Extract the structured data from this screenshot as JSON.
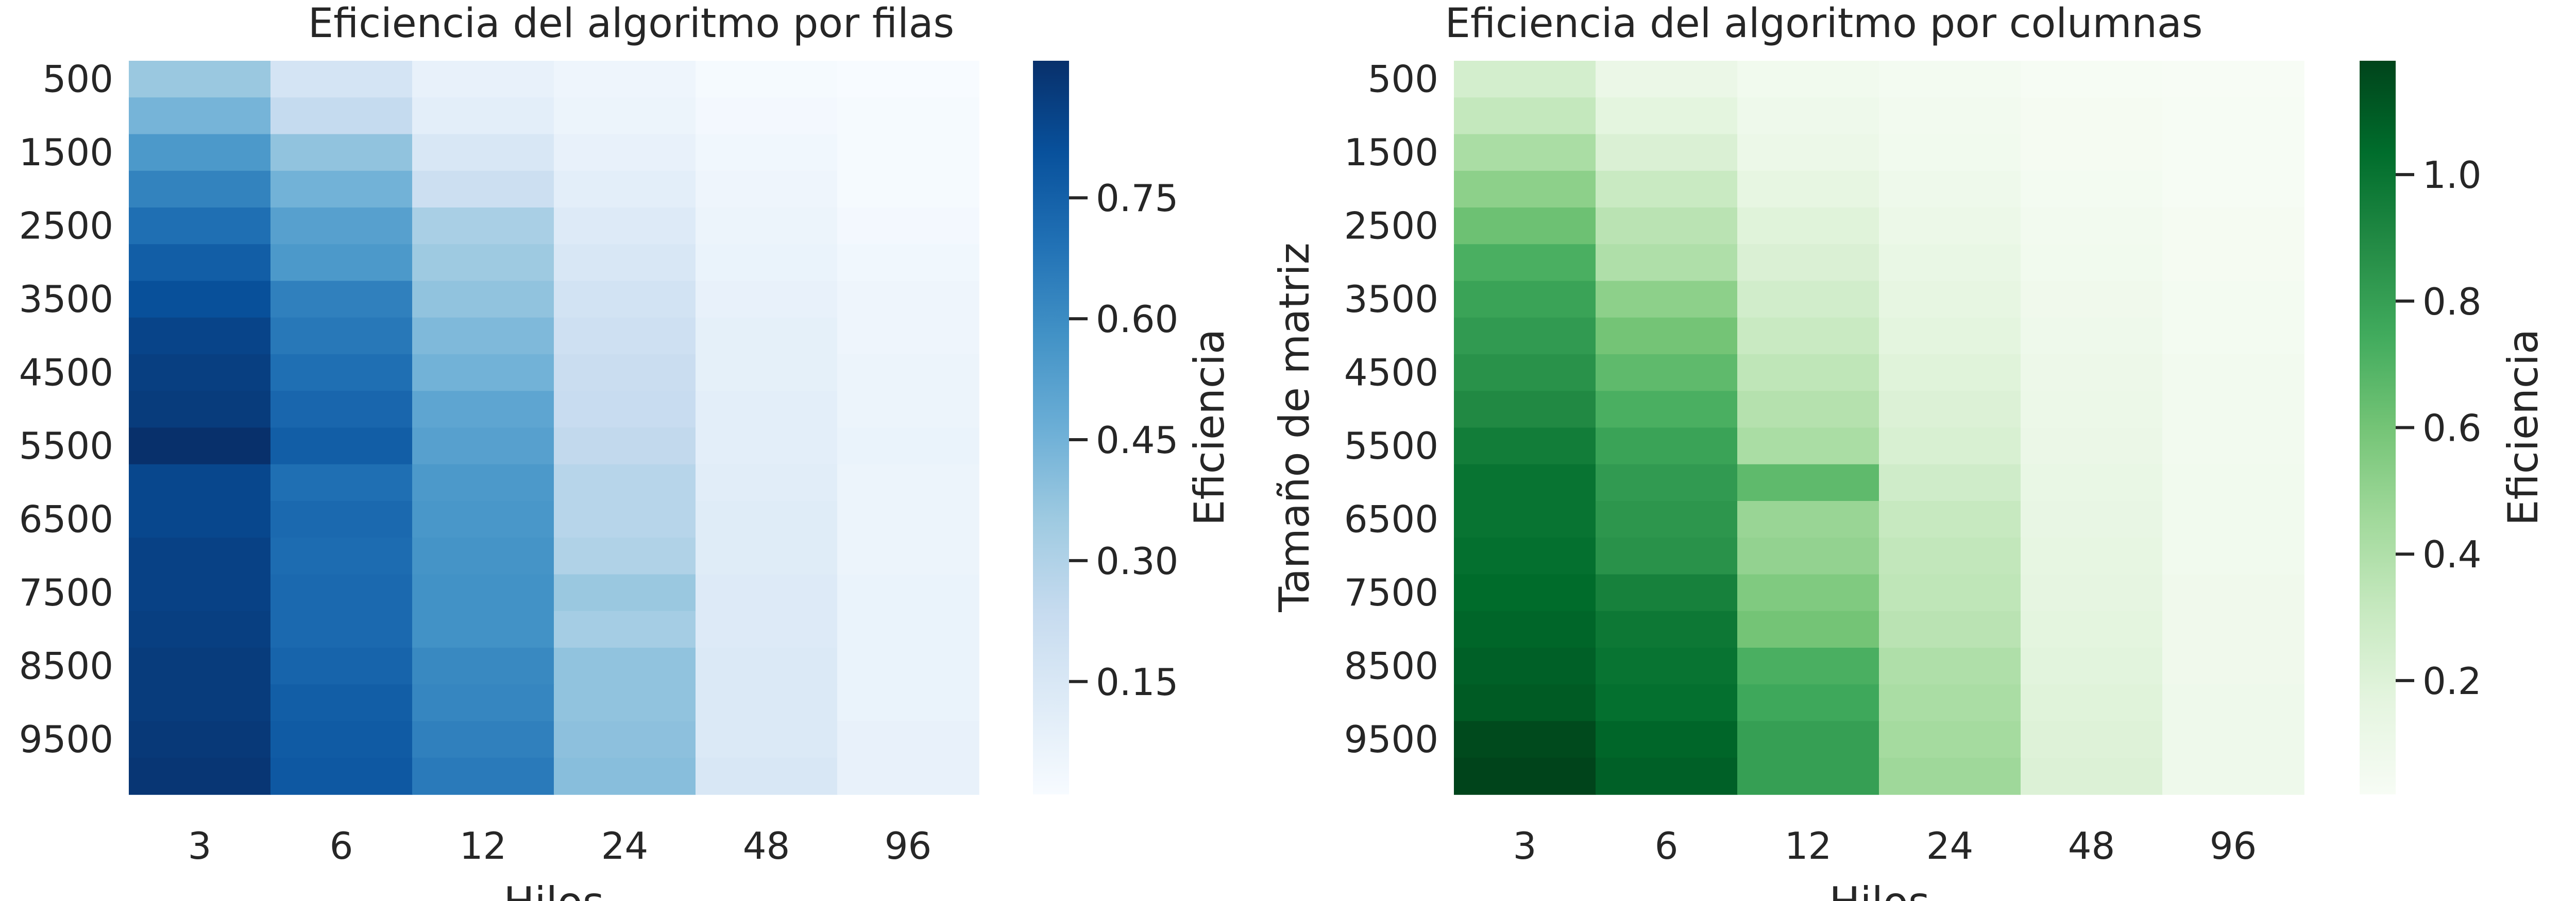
{
  "chart_data": [
    {
      "type": "heatmap",
      "title": "Eficiencia del algoritmo por filas",
      "xlabel": "Hilos",
      "ylabel": "",
      "x": [
        "3",
        "6",
        "12",
        "24",
        "48",
        "96"
      ],
      "y_tick_labels": [
        "500",
        "1500",
        "2500",
        "3500",
        "4500",
        "5500",
        "6500",
        "7500",
        "8500",
        "9500"
      ],
      "rows": [
        "500",
        "1000",
        "1500",
        "2000",
        "2500",
        "3000",
        "3500",
        "4000",
        "4500",
        "5000",
        "5500",
        "6000",
        "6500",
        "7000",
        "7500",
        "8000",
        "8500",
        "9000",
        "9500",
        "10000"
      ],
      "values": [
        [
          0.36,
          0.17,
          0.08,
          0.05,
          0.02,
          0.01
        ],
        [
          0.44,
          0.24,
          0.1,
          0.06,
          0.03,
          0.02
        ],
        [
          0.55,
          0.38,
          0.15,
          0.08,
          0.04,
          0.02
        ],
        [
          0.63,
          0.45,
          0.21,
          0.1,
          0.05,
          0.02
        ],
        [
          0.7,
          0.52,
          0.32,
          0.13,
          0.06,
          0.03
        ],
        [
          0.76,
          0.55,
          0.35,
          0.15,
          0.07,
          0.04
        ],
        [
          0.81,
          0.64,
          0.38,
          0.18,
          0.08,
          0.05
        ],
        [
          0.85,
          0.67,
          0.42,
          0.2,
          0.09,
          0.05
        ],
        [
          0.87,
          0.7,
          0.45,
          0.22,
          0.09,
          0.06
        ],
        [
          0.88,
          0.73,
          0.5,
          0.23,
          0.1,
          0.06
        ],
        [
          0.92,
          0.76,
          0.52,
          0.25,
          0.1,
          0.07
        ],
        [
          0.84,
          0.7,
          0.55,
          0.28,
          0.11,
          0.06
        ],
        [
          0.84,
          0.72,
          0.56,
          0.28,
          0.12,
          0.06
        ],
        [
          0.86,
          0.71,
          0.57,
          0.3,
          0.12,
          0.06
        ],
        [
          0.86,
          0.72,
          0.58,
          0.36,
          0.13,
          0.07
        ],
        [
          0.87,
          0.72,
          0.58,
          0.33,
          0.13,
          0.07
        ],
        [
          0.88,
          0.74,
          0.61,
          0.38,
          0.14,
          0.07
        ],
        [
          0.88,
          0.76,
          0.62,
          0.38,
          0.14,
          0.07
        ],
        [
          0.89,
          0.77,
          0.64,
          0.39,
          0.14,
          0.08
        ],
        [
          0.9,
          0.78,
          0.66,
          0.4,
          0.15,
          0.08
        ]
      ],
      "colormap": "Blues",
      "vmin": 0.01,
      "vmax": 0.92,
      "colorbar": {
        "label": "Eficiencia",
        "ticks": [
          0.15,
          0.3,
          0.45,
          0.6,
          0.75
        ],
        "tick_labels": [
          "0.15",
          "0.30",
          "0.45",
          "0.60",
          "0.75"
        ]
      }
    },
    {
      "type": "heatmap",
      "title": "Eficiencia del algoritmo por columnas",
      "xlabel": "Hilos",
      "ylabel": "Tamaño de matriz",
      "x": [
        "3",
        "6",
        "12",
        "24",
        "48",
        "96"
      ],
      "y_tick_labels": [
        "500",
        "1500",
        "2500",
        "3500",
        "4500",
        "5500",
        "6500",
        "7500",
        "8500",
        "9500"
      ],
      "rows": [
        "500",
        "1000",
        "1500",
        "2000",
        "2500",
        "3000",
        "3500",
        "4000",
        "4500",
        "5000",
        "5500",
        "6000",
        "6500",
        "7000",
        "7500",
        "8000",
        "8500",
        "9000",
        "9500",
        "10000"
      ],
      "values": [
        [
          0.25,
          0.12,
          0.07,
          0.05,
          0.03,
          0.02
        ],
        [
          0.32,
          0.17,
          0.09,
          0.06,
          0.04,
          0.03
        ],
        [
          0.42,
          0.22,
          0.11,
          0.07,
          0.04,
          0.03
        ],
        [
          0.52,
          0.3,
          0.15,
          0.09,
          0.05,
          0.03
        ],
        [
          0.62,
          0.36,
          0.19,
          0.11,
          0.06,
          0.04
        ],
        [
          0.72,
          0.4,
          0.22,
          0.13,
          0.07,
          0.04
        ],
        [
          0.78,
          0.52,
          0.26,
          0.15,
          0.08,
          0.05
        ],
        [
          0.82,
          0.6,
          0.3,
          0.17,
          0.09,
          0.05
        ],
        [
          0.86,
          0.66,
          0.34,
          0.19,
          0.1,
          0.06
        ],
        [
          0.9,
          0.72,
          0.38,
          0.21,
          0.11,
          0.06
        ],
        [
          0.96,
          0.78,
          0.42,
          0.23,
          0.12,
          0.06
        ],
        [
          1.0,
          0.82,
          0.66,
          0.27,
          0.13,
          0.07
        ],
        [
          1.0,
          0.84,
          0.48,
          0.31,
          0.14,
          0.07
        ],
        [
          1.02,
          0.86,
          0.5,
          0.33,
          0.15,
          0.07
        ],
        [
          1.04,
          0.94,
          0.56,
          0.34,
          0.16,
          0.08
        ],
        [
          1.06,
          0.98,
          0.6,
          0.36,
          0.17,
          0.08
        ],
        [
          1.08,
          1.0,
          0.72,
          0.4,
          0.18,
          0.08
        ],
        [
          1.1,
          1.02,
          0.76,
          0.42,
          0.19,
          0.09
        ],
        [
          1.16,
          1.06,
          0.8,
          0.44,
          0.2,
          0.09
        ],
        [
          1.18,
          1.08,
          0.8,
          0.46,
          0.21,
          0.09
        ]
      ],
      "colormap": "Greens",
      "vmin": 0.02,
      "vmax": 1.18,
      "colorbar": {
        "label": "Eficiencia",
        "ticks": [
          0.2,
          0.4,
          0.6,
          0.8,
          1.0
        ],
        "tick_labels": [
          "0.2",
          "0.4",
          "0.6",
          "0.8",
          "1.0"
        ]
      }
    }
  ],
  "colormaps": {
    "Blues": [
      "#f7fbff",
      "#deebf7",
      "#c6dbef",
      "#9ecae1",
      "#6baed6",
      "#4292c6",
      "#2171b5",
      "#08519c",
      "#08306b"
    ],
    "Greens": [
      "#f7fcf5",
      "#e5f5e0",
      "#c7e9c0",
      "#a1d99b",
      "#74c476",
      "#41ab5d",
      "#238b45",
      "#006d2c",
      "#00441b"
    ]
  }
}
